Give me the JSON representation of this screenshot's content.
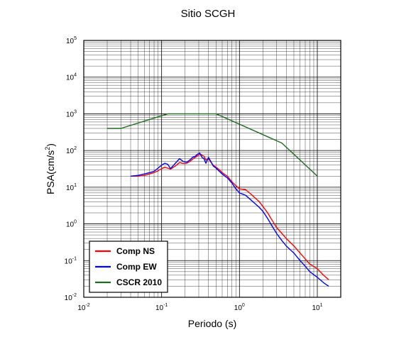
{
  "chart_data": {
    "type": "line",
    "title": "Sitio SCGH",
    "xlabel": "Periodo (s)",
    "ylabel_base": "PSA(cm/s",
    "ylabel_sup": "2",
    "ylabel_close": ")",
    "x_scale": "log",
    "y_scale": "log",
    "xlim": [
      0.01,
      20
    ],
    "ylim": [
      0.01,
      100000
    ],
    "grid": true,
    "legend_position": "bottom-left",
    "x_ticks": [
      {
        "base": "10",
        "exp": "-2",
        "value": 0.01
      },
      {
        "base": "10",
        "exp": "-1",
        "value": 0.1
      },
      {
        "base": "10",
        "exp": "0",
        "value": 1
      },
      {
        "base": "10",
        "exp": "1",
        "value": 10
      }
    ],
    "y_ticks": [
      {
        "base": "10",
        "exp": "-2",
        "value": 0.01
      },
      {
        "base": "10",
        "exp": "-1",
        "value": 0.1
      },
      {
        "base": "10",
        "exp": "0",
        "value": 1
      },
      {
        "base": "10",
        "exp": "1",
        "value": 10
      },
      {
        "base": "10",
        "exp": "2",
        "value": 100
      },
      {
        "base": "10",
        "exp": "3",
        "value": 1000
      },
      {
        "base": "10",
        "exp": "4",
        "value": 10000
      },
      {
        "base": "10",
        "exp": "5",
        "value": 100000
      }
    ],
    "series": [
      {
        "name": "Comp NS",
        "color": "#ff0000",
        "x": [
          0.04,
          0.05,
          0.06,
          0.07,
          0.08,
          0.09,
          0.1,
          0.11,
          0.12,
          0.13,
          0.15,
          0.17,
          0.19,
          0.21,
          0.23,
          0.25,
          0.27,
          0.29,
          0.31,
          0.33,
          0.35,
          0.37,
          0.4,
          0.43,
          0.46,
          0.5,
          0.55,
          0.6,
          0.65,
          0.7,
          0.8,
          0.9,
          1.0,
          1.2,
          1.4,
          1.6,
          1.8,
          2.0,
          2.3,
          2.6,
          3.0,
          3.5,
          4.0,
          5.0,
          6.0,
          7.0,
          8.0,
          10.0,
          12.0,
          14.0
        ],
        "y": [
          20,
          20,
          21,
          23,
          25,
          28,
          32,
          35,
          33,
          31,
          38,
          47,
          44,
          45,
          50,
          58,
          65,
          72,
          80,
          75,
          70,
          55,
          60,
          48,
          40,
          35,
          30,
          25,
          22,
          20,
          14,
          11,
          9,
          8.5,
          6.5,
          5,
          4,
          3,
          2,
          1.3,
          0.8,
          0.55,
          0.4,
          0.25,
          0.16,
          0.11,
          0.08,
          0.06,
          0.04,
          0.03
        ]
      },
      {
        "name": "Comp EW",
        "color": "#0000ff",
        "x": [
          0.04,
          0.05,
          0.06,
          0.07,
          0.08,
          0.09,
          0.1,
          0.11,
          0.12,
          0.13,
          0.15,
          0.17,
          0.19,
          0.21,
          0.23,
          0.25,
          0.27,
          0.29,
          0.31,
          0.33,
          0.35,
          0.37,
          0.4,
          0.43,
          0.46,
          0.5,
          0.55,
          0.6,
          0.65,
          0.7,
          0.8,
          0.9,
          1.0,
          1.2,
          1.4,
          1.6,
          1.8,
          2.0,
          2.3,
          2.6,
          3.0,
          3.5,
          4.0,
          5.0,
          6.0,
          7.0,
          8.0,
          10.0,
          12.0,
          14.0
        ],
        "y": [
          20,
          21,
          23,
          25,
          27,
          33,
          40,
          45,
          42,
          32,
          45,
          60,
          50,
          48,
          55,
          65,
          70,
          80,
          85,
          65,
          60,
          45,
          65,
          50,
          38,
          33,
          27,
          23,
          20,
          18,
          13,
          9,
          7,
          6,
          4.5,
          3.5,
          2.8,
          2.2,
          1.4,
          0.9,
          0.55,
          0.35,
          0.25,
          0.16,
          0.1,
          0.07,
          0.05,
          0.035,
          0.025,
          0.02
        ]
      },
      {
        "name": "CSCR 2010",
        "color": "#1f6b1f",
        "x": [
          0.02,
          0.03,
          0.12,
          0.5,
          3.5,
          10.0
        ],
        "y": [
          400,
          400,
          1000,
          1000,
          160,
          20
        ]
      }
    ]
  }
}
